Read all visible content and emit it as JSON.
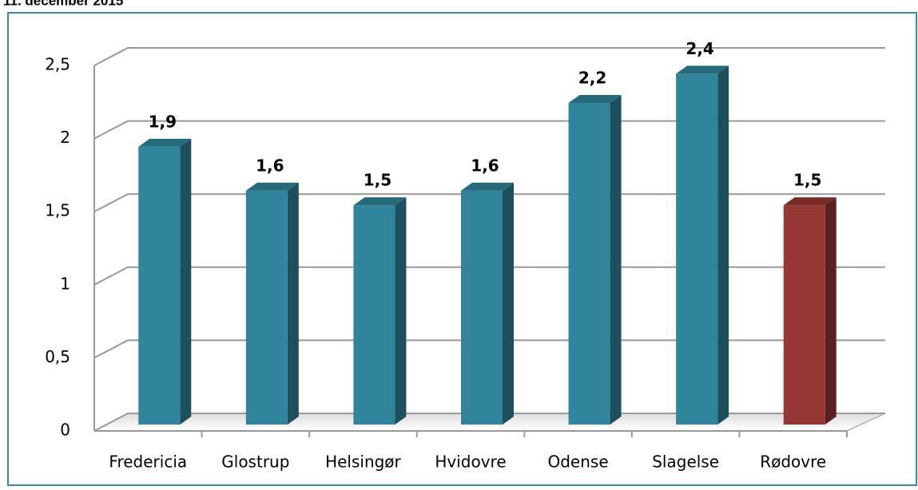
{
  "chart_data": {
    "type": "bar3d",
    "title": "11. december 2015",
    "categories": [
      "Fredericia",
      "Glostrup",
      "Helsingør",
      "Hvidovre",
      "Odense",
      "Slagelse",
      "Rødovre"
    ],
    "values": [
      1.9,
      1.6,
      1.5,
      1.6,
      2.2,
      2.4,
      1.5
    ],
    "value_labels": [
      "1,9",
      "1,6",
      "1,5",
      "1,6",
      "2,2",
      "2,4",
      "1,5"
    ],
    "colors": [
      "#31849b",
      "#31849b",
      "#31849b",
      "#31849b",
      "#31849b",
      "#31849b",
      "#953735"
    ],
    "ylim": [
      0,
      2.5
    ],
    "yticks": [
      0,
      {
        "value": 0.5,
        "label": "0,5"
      },
      1,
      {
        "value": 1.5,
        "label": "1,5"
      },
      2,
      {
        "value": 2.5,
        "label": "2,5"
      }
    ],
    "grid": true
  }
}
